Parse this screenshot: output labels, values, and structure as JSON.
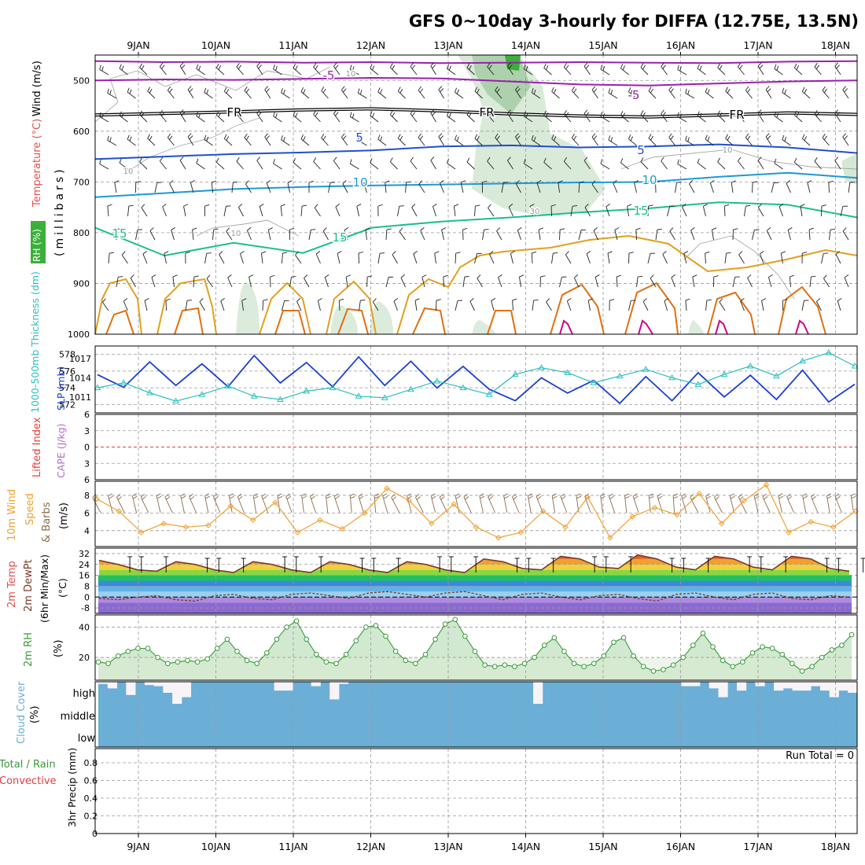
{
  "title": "GFS 0~10day 3-hourly for DIFFA (12.75E, 13.5N)",
  "dates": [
    "9JAN",
    "10JAN",
    "11JAN",
    "12JAN",
    "13JAN",
    "14JAN",
    "15JAN",
    "16JAN",
    "17JAN",
    "18JAN"
  ],
  "run_total": "Run Total = 0",
  "colors": {
    "frame": "#000000",
    "grid": "#9a9a9a",
    "rh_fill": "#b9d9b9",
    "t_minus5": "#9b1fb0",
    "t_zero": "#000000",
    "t_5": "#1f4fd0",
    "t_10": "#1a9ad8",
    "t_15": "#1abf8f",
    "t_20": "#e0a020",
    "t_25": "#e07010",
    "t_30": "#d0008a",
    "slp": "#1a3fd0",
    "thickness": "#2abfbf",
    "lifted_zero": "#e04040",
    "wind_speed": "#f0a030",
    "barb_brown": "#8b6b4b",
    "rh2m": "#3a9a3a",
    "rh2m_fill": "#b8dcb8",
    "cloud": "#6baed6",
    "temp_curve": "#7a3a2a"
  },
  "chart_data": [
    {
      "type": "line",
      "name": "upper-air",
      "xlabels": [
        "9JAN",
        "10JAN",
        "11JAN",
        "12JAN",
        "13JAN",
        "14JAN",
        "15JAN",
        "16JAN",
        "17JAN",
        "18JAN"
      ],
      "ylabel_parts": [
        "RH (%)",
        "Temperature (°C)",
        "Wind (m/s)"
      ],
      "ylabel_right": "(millibars)",
      "yticks": [
        500,
        600,
        700,
        800,
        900,
        1000
      ],
      "ylim": [
        1000,
        450
      ],
      "contour_labels": [
        "-5",
        "-5",
        "FR",
        "FR",
        "FR",
        "5",
        "5",
        "10",
        "10",
        "15",
        "15",
        "15",
        "10",
        "10",
        "10",
        "10",
        "30"
      ],
      "isotherms": [
        {
          "label": "-5",
          "values": [
            462,
            464,
            463,
            465,
            464,
            466,
            465,
            464,
            465,
            466,
            463,
            462
          ]
        },
        {
          "label": "-5",
          "values": [
            500,
            498,
            499,
            497,
            495,
            496,
            502,
            508,
            510,
            506,
            502,
            500
          ]
        },
        {
          "label": "FR",
          "values": [
            568,
            565,
            562,
            558,
            556,
            560,
            566,
            570,
            572,
            568,
            564,
            567
          ]
        },
        {
          "label": "5",
          "values": [
            655,
            650,
            645,
            642,
            638,
            630,
            628,
            632,
            630,
            626,
            632,
            643
          ]
        },
        {
          "label": "10",
          "values": [
            730,
            722,
            714,
            710,
            707,
            705,
            703,
            701,
            700,
            690,
            682,
            692
          ]
        },
        {
          "label": "15",
          "values": [
            790,
            845,
            820,
            840,
            790,
            778,
            770,
            760,
            752,
            740,
            745,
            770
          ]
        }
      ]
    },
    {
      "type": "line",
      "name": "pressure-thickness",
      "ylabel_left": "1000-500mb Thickness (dm)",
      "ylabel_right": "SLP (mb)",
      "left_ticks": [
        572,
        574,
        576,
        578
      ],
      "right_ticks": [
        1011,
        1014,
        1017
      ],
      "series": [
        {
          "name": "SLP (mb)",
          "values": [
            1014.5,
            1012.5,
            1016.5,
            1012.8,
            1016.2,
            1012.6,
            1017.5,
            1013.2,
            1016.4,
            1012.6,
            1017.3,
            1012.8,
            1016.6,
            1012.4,
            1015.8,
            1012.2,
            1010.4,
            1014.0,
            1011.6,
            1013.6,
            1010.0,
            1014.2,
            1010.4,
            1014.8,
            1011.0,
            1014.4,
            1010.6,
            1015.2,
            1010.2,
            1013.0
          ]
        },
        {
          "name": "1000-500mb Thickness (dm)",
          "values": [
            574.0,
            574.6,
            573.4,
            572.4,
            573.2,
            574.2,
            573.0,
            572.6,
            573.6,
            574.0,
            573.0,
            572.8,
            573.8,
            574.8,
            574.0,
            573.2,
            575.6,
            576.4,
            575.8,
            574.6,
            575.4,
            576.2,
            575.2,
            574.4,
            575.6,
            576.6,
            575.4,
            577.2,
            578.2,
            576.6
          ]
        }
      ]
    },
    {
      "type": "line",
      "name": "stability",
      "ylabel_left": "Lifted Index",
      "ylabel_right": "CAPE (J/kg)",
      "yticks": [
        -6,
        -3,
        0,
        3,
        6
      ],
      "series": [
        {
          "name": "Lifted Index",
          "values": []
        },
        {
          "name": "CAPE (J/kg)",
          "values": []
        }
      ]
    },
    {
      "type": "line",
      "name": "10m-wind",
      "ylabel_parts": [
        "10m Wind",
        "Speed",
        "& Barbs",
        "(m/s)"
      ],
      "yticks": [
        4,
        6,
        8
      ],
      "series": [
        {
          "name": "10m Wind Speed",
          "values": [
            7.6,
            6.2,
            3.8,
            4.8,
            4.4,
            4.6,
            6.8,
            5.2,
            7.2,
            3.8,
            5.2,
            4.2,
            6.0,
            8.8,
            7.4,
            4.8,
            7.0,
            4.4,
            3.2,
            3.8,
            6.2,
            4.4,
            7.8,
            3.2,
            5.6,
            6.6,
            5.8,
            8.2,
            4.8,
            7.4,
            9.2,
            3.8,
            5.0,
            4.4,
            6.2
          ]
        }
      ]
    },
    {
      "type": "area",
      "name": "2m-temp",
      "ylabel_parts": [
        "2m Temp",
        "2m DewPt",
        "(6hr Min/Max)",
        "(°C)"
      ],
      "yticks": [
        -8,
        0,
        8,
        16,
        24,
        32
      ],
      "series": [
        {
          "name": "2m Temp",
          "values": [
            27,
            24,
            20,
            19,
            26,
            24,
            20,
            18,
            26,
            24,
            20,
            18,
            26,
            24,
            20,
            18,
            26,
            24,
            20,
            18,
            28,
            26,
            21,
            20,
            30,
            28,
            22,
            21,
            31,
            28,
            22,
            20,
            30,
            28,
            22,
            20,
            30,
            28,
            21,
            19
          ]
        },
        {
          "name": "2m DewPt",
          "values": [
            -1,
            -2,
            0,
            1,
            -2,
            -3,
            1,
            2,
            -1,
            -2,
            2,
            3,
            1,
            -1,
            3,
            4,
            2,
            0,
            3,
            4,
            1,
            -2,
            2,
            3,
            0,
            -2,
            1,
            2,
            -1,
            -3,
            2,
            3,
            0,
            -2,
            2,
            3,
            -1,
            -2,
            1,
            0
          ]
        }
      ]
    },
    {
      "type": "area",
      "name": "2m-rh",
      "ylabel": "2m RH",
      "ylabel_unit": "(%)",
      "yticks": [
        20,
        40
      ],
      "series": [
        {
          "name": "2m RH",
          "values": [
            17,
            16,
            21,
            24,
            26,
            26,
            20,
            16,
            17,
            18,
            17,
            19,
            26,
            32,
            24,
            18,
            16,
            23,
            32,
            40,
            44,
            32,
            22,
            17,
            16,
            22,
            31,
            40,
            41,
            34,
            24,
            18,
            16,
            22,
            32,
            42,
            45,
            34,
            24,
            15,
            14,
            15,
            14,
            16,
            20,
            28,
            33,
            24,
            16,
            14,
            16,
            21,
            30,
            33,
            21,
            14,
            11,
            12,
            15,
            20,
            28,
            36,
            27,
            18,
            14,
            17,
            23,
            27,
            26,
            22,
            16,
            11,
            14,
            20,
            25,
            28,
            35
          ]
        }
      ]
    },
    {
      "type": "bar",
      "name": "cloud-cover",
      "ylabel": "Cloud Cover",
      "ylabel_unit": "(%)",
      "levels": [
        "high",
        "middle",
        "low"
      ],
      "series": [
        {
          "name": "high cloud cover",
          "values": [
            90,
            70,
            100,
            40,
            100,
            85,
            80,
            50,
            0,
            30,
            100,
            100,
            100,
            100,
            100,
            100,
            100,
            100,
            100,
            60,
            60,
            100,
            100,
            80,
            100,
            20,
            90,
            100,
            100,
            100,
            100,
            100,
            100,
            100,
            100,
            100,
            100,
            100,
            100,
            100,
            100,
            100,
            100,
            100,
            100,
            100,
            100,
            0,
            100,
            100,
            100,
            100,
            100,
            100,
            100,
            100,
            100,
            100,
            100,
            100,
            100,
            100,
            100,
            80,
            80,
            100,
            70,
            30,
            100,
            60,
            100,
            80,
            100,
            60,
            70,
            60,
            60,
            80,
            60,
            30,
            60,
            50
          ]
        }
      ]
    },
    {
      "type": "bar",
      "name": "precipitation",
      "ylabel_left": [
        "Total / Rain",
        "Convective"
      ],
      "ylabel": "3hr Precip (mm)",
      "yticks": [
        0,
        0.2,
        0.4,
        0.6,
        0.8
      ],
      "series": [
        {
          "name": "Total / Rain",
          "values": []
        },
        {
          "name": "Convective",
          "values": []
        }
      ]
    }
  ]
}
